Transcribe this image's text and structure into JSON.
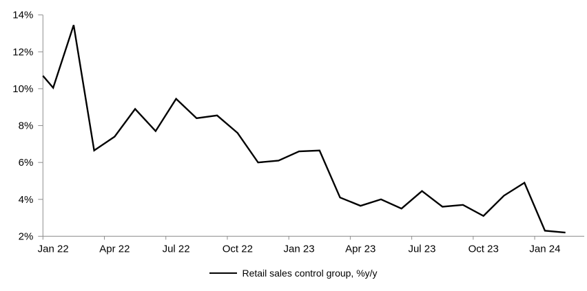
{
  "chart_data": {
    "type": "line",
    "categories": [
      "Jan 22",
      "Feb 22",
      "Mar 22",
      "Apr 22",
      "May 22",
      "Jun 22",
      "Jul 22",
      "Aug 22",
      "Sep 22",
      "Oct 22",
      "Nov 22",
      "Dec 22",
      "Jan 23",
      "Feb 23",
      "Mar 23",
      "Apr 23",
      "May 23",
      "Jun 23",
      "Jul 23",
      "Aug 23",
      "Sep 23",
      "Oct 23",
      "Nov 23",
      "Dec 23",
      "Jan 24",
      "Feb 24"
    ],
    "series": [
      {
        "name": "Retail sales control group, %y/y",
        "color": "#000000",
        "values": [
          10.05,
          13.45,
          6.65,
          7.4,
          8.9,
          7.7,
          9.45,
          8.4,
          8.55,
          7.6,
          6.0,
          6.1,
          6.6,
          6.65,
          4.1,
          3.65,
          4.0,
          3.5,
          4.45,
          3.6,
          3.7,
          3.1,
          4.2,
          4.9,
          2.3,
          2.2
        ]
      }
    ],
    "clipped_left_edge_value": 10.7,
    "ylim": [
      2,
      14
    ],
    "y_tick_step": 2,
    "y_tick_labels": [
      "2%",
      "4%",
      "6%",
      "8%",
      "10%",
      "12%",
      "14%"
    ],
    "x_tick_labels": [
      "Jan 22",
      "Apr 22",
      "Jul 22",
      "Oct 22",
      "Jan 23",
      "Apr 23",
      "Jul 23",
      "Oct 23",
      "Jan 24"
    ],
    "x_tick_interval_months": 3,
    "grid": "off",
    "legend_position": "bottom-center",
    "axis_color": "#8c8c8c",
    "background": "#ffffff"
  }
}
